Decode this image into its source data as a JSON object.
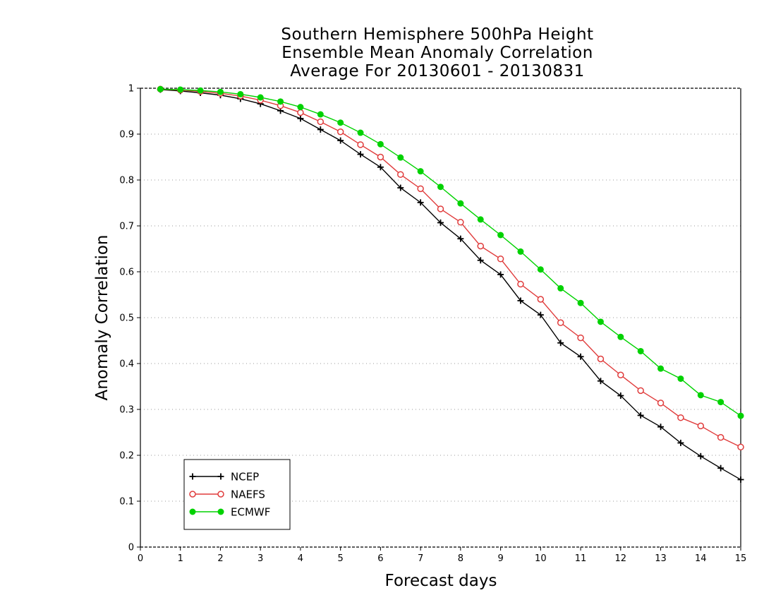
{
  "chart_data": {
    "type": "line",
    "title": [
      "Southern Hemisphere 500hPa Height",
      "Ensemble Mean Anomaly Correlation",
      "Average For 20130601 - 20130831"
    ],
    "xlabel": "Forecast days",
    "ylabel": "Anomaly Correlation",
    "xlim": [
      0,
      15
    ],
    "ylim": [
      0,
      1
    ],
    "x_ticks": [
      "0",
      "1",
      "2",
      "3",
      "4",
      "5",
      "6",
      "7",
      "8",
      "9",
      "10",
      "11",
      "12",
      "13",
      "14",
      "15"
    ],
    "y_ticks": [
      "0",
      "0.1",
      "0.2",
      "0.3",
      "0.4",
      "0.5",
      "0.6",
      "0.7",
      "0.8",
      "0.9",
      "1"
    ],
    "grid": "dotted horizontal",
    "legend_position": "bottom-left",
    "x": [
      0.5,
      1,
      1.5,
      2,
      2.5,
      3,
      3.5,
      4,
      4.5,
      5,
      5.5,
      6,
      6.5,
      7,
      7.5,
      8,
      8.5,
      9,
      9.5,
      10,
      10.5,
      11,
      11.5,
      12,
      12.5,
      13,
      13.5,
      14,
      14.5,
      15
    ],
    "series": [
      {
        "name": "NCEP",
        "color": "#000000",
        "marker": "plus",
        "values": [
          0.997,
          0.994,
          0.99,
          0.985,
          0.977,
          0.966,
          0.951,
          0.934,
          0.91,
          0.886,
          0.856,
          0.828,
          0.783,
          0.751,
          0.707,
          0.672,
          0.625,
          0.594,
          0.537,
          0.506,
          0.445,
          0.415,
          0.362,
          0.33,
          0.287,
          0.262,
          0.227,
          0.198,
          0.172,
          0.147
        ]
      },
      {
        "name": "NAEFS",
        "color": "#e03c3c",
        "marker": "open-circle",
        "values": [
          0.998,
          0.996,
          0.993,
          0.989,
          0.983,
          0.974,
          0.962,
          0.947,
          0.927,
          0.905,
          0.877,
          0.85,
          0.812,
          0.781,
          0.737,
          0.708,
          0.656,
          0.628,
          0.573,
          0.54,
          0.489,
          0.456,
          0.41,
          0.375,
          0.341,
          0.314,
          0.282,
          0.264,
          0.239,
          0.218
        ]
      },
      {
        "name": "ECMWF",
        "color": "#00d200",
        "marker": "filled-circle",
        "values": [
          0.998,
          0.997,
          0.995,
          0.992,
          0.987,
          0.98,
          0.971,
          0.959,
          0.943,
          0.925,
          0.903,
          0.878,
          0.849,
          0.819,
          0.785,
          0.749,
          0.714,
          0.68,
          0.644,
          0.605,
          0.564,
          0.532,
          0.491,
          0.458,
          0.427,
          0.389,
          0.367,
          0.331,
          0.316,
          0.286
        ]
      }
    ]
  }
}
